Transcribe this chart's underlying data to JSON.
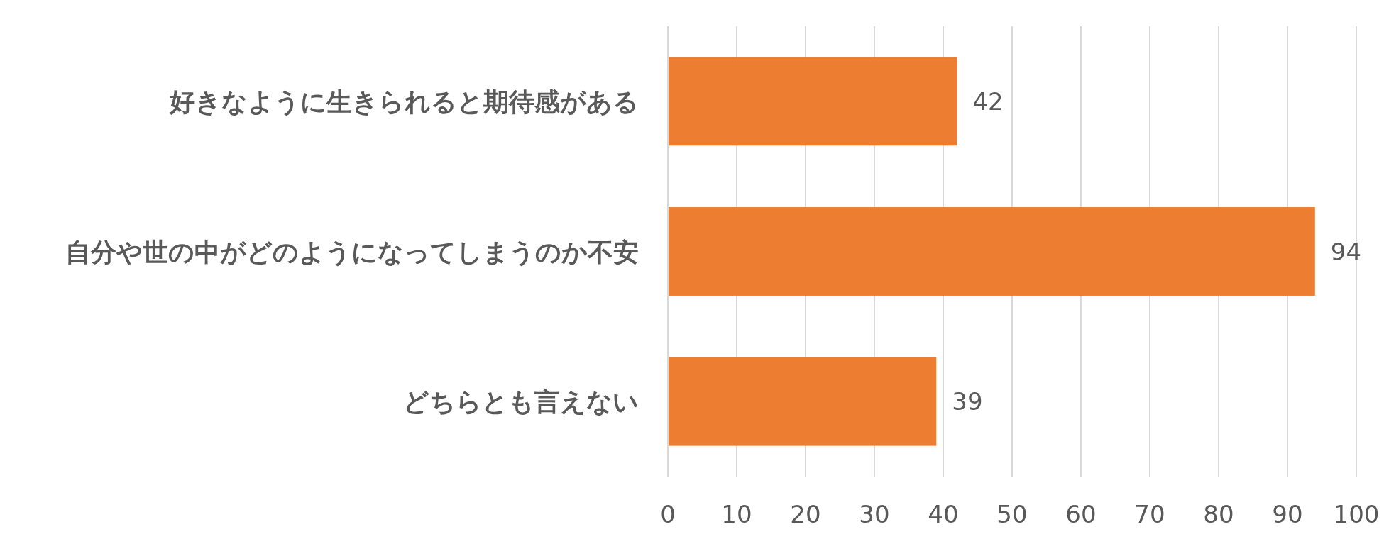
{
  "chart_data": {
    "type": "bar",
    "orientation": "horizontal",
    "categories": [
      "好きなように生きられると期待感がある",
      "自分や世の中がどのようになってしまうのか不安",
      "どちらとも言えない"
    ],
    "values": [
      42,
      94,
      39
    ],
    "color": "#ed7d31",
    "xlim": [
      0,
      100
    ],
    "xticks": [
      0,
      10,
      20,
      30,
      40,
      50,
      60,
      70,
      80,
      90,
      100
    ],
    "grid": "x",
    "data_labels": true
  }
}
